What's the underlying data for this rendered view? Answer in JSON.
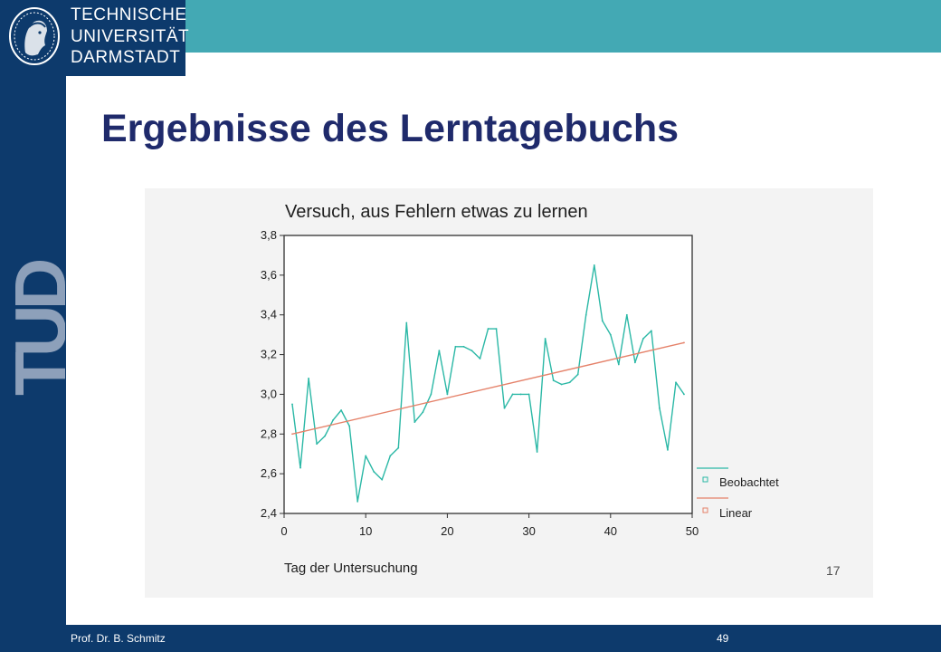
{
  "header": {
    "university_lines": [
      "TECHNISCHE",
      "UNIVERSITÄT",
      "DARMSTADT"
    ],
    "brand_color": "#0d3a6c",
    "band_color": "#43a9b4",
    "side_mark": "TUD"
  },
  "slide": {
    "title": "Ergebnisse des Lerntagebuchs"
  },
  "footer": {
    "author": "Prof. Dr. B. Schmitz",
    "page": "49"
  },
  "figure_number": "17",
  "chart_data": {
    "type": "line",
    "title": "Versuch, aus Fehlern etwas zu lernen",
    "xlabel": "Tag der Untersuchung",
    "ylabel": "",
    "xlim": [
      0,
      50
    ],
    "ylim": [
      2.4,
      3.8
    ],
    "x_ticks": [
      0,
      10,
      20,
      30,
      40,
      50
    ],
    "y_ticks": [
      "2,4",
      "2,6",
      "2,8",
      "3,0",
      "3,2",
      "3,4",
      "3,6",
      "3,8"
    ],
    "y_tick_values": [
      2.4,
      2.6,
      2.8,
      3.0,
      3.2,
      3.4,
      3.6,
      3.8
    ],
    "grid": false,
    "legend_position": "right",
    "series": [
      {
        "name": "Beobachtet",
        "color": "#2bb8a6",
        "x": [
          1,
          2,
          3,
          4,
          5,
          6,
          7,
          8,
          9,
          10,
          11,
          12,
          13,
          14,
          15,
          16,
          17,
          18,
          19,
          20,
          21,
          22,
          23,
          24,
          25,
          26,
          27,
          28,
          29,
          30,
          31,
          32,
          33,
          34,
          35,
          36,
          37,
          38,
          39,
          40,
          41,
          42,
          43,
          44,
          45,
          46,
          47,
          48,
          49
        ],
        "values": [
          2.95,
          2.63,
          3.08,
          2.75,
          2.79,
          2.87,
          2.92,
          2.84,
          2.46,
          2.69,
          2.61,
          2.57,
          2.69,
          2.73,
          3.36,
          2.86,
          2.91,
          3.0,
          3.22,
          3.0,
          3.24,
          3.24,
          3.22,
          3.18,
          3.33,
          3.33,
          2.93,
          3.0,
          3.0,
          3.0,
          2.71,
          3.28,
          3.07,
          3.05,
          3.06,
          3.1,
          3.4,
          3.65,
          3.37,
          3.3,
          3.15,
          3.4,
          3.16,
          3.28,
          3.32,
          2.93,
          2.72,
          3.06,
          3.0
        ]
      },
      {
        "name": "Linear",
        "color": "#e5826a",
        "x": [
          1,
          49
        ],
        "values": [
          2.8,
          3.26
        ]
      }
    ]
  }
}
